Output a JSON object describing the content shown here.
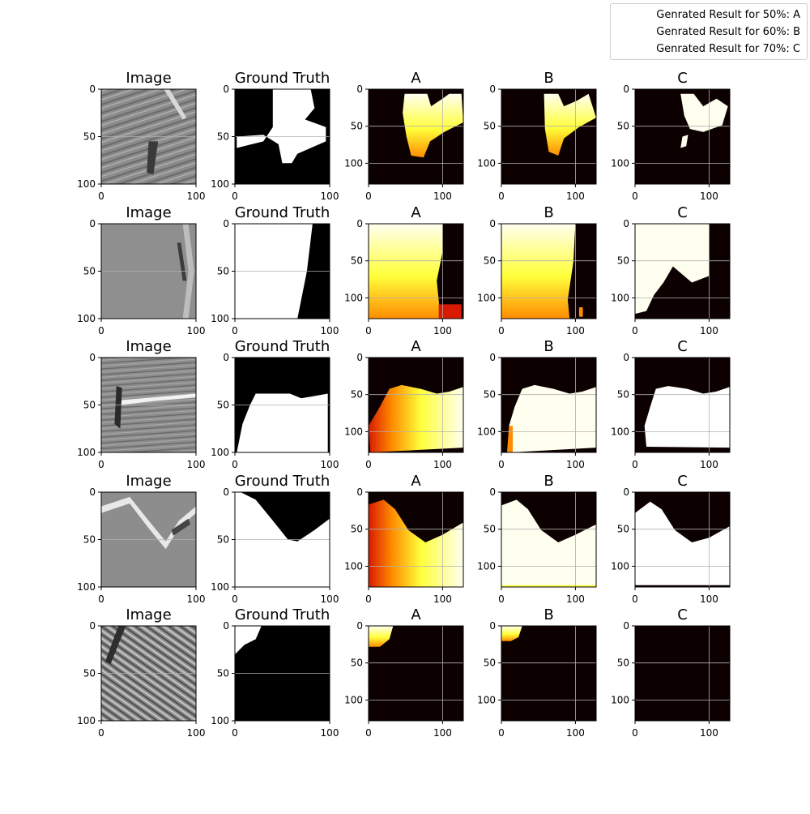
{
  "legend": {
    "entries": [
      "Genrated Result for 50%: A",
      "Genrated Result for 60%: B",
      "Genrated Result for 70%: C"
    ]
  },
  "colors": {
    "hot_black": "#0d0000",
    "hot_red": "#d81b00",
    "hot_orange": "#ff8c00",
    "hot_yellow": "#ffff3a",
    "hot_white": "#fffff0",
    "mask_white": "#ffffff",
    "mask_black": "#000000",
    "seismic_gray": "#8a8a8a",
    "grid": "#b0b0b0"
  },
  "chart_data": [
    {
      "type": "heatmap",
      "description_rows": 5,
      "columns": [
        {
          "title": "Image",
          "xlim": [
            0,
            100
          ],
          "ylim": [
            100,
            0
          ],
          "xticks": [
            "0",
            "100"
          ],
          "yticks": [
            "0",
            "50",
            "100"
          ],
          "colormap": "gray"
        },
        {
          "title": "Ground Truth",
          "xlim": [
            0,
            100
          ],
          "ylim": [
            100,
            0
          ],
          "xticks": [
            "0",
            "100"
          ],
          "yticks": [
            "0",
            "50",
            "100"
          ],
          "colormap": "binary"
        },
        {
          "title": "A",
          "xlim": [
            0,
            128
          ],
          "ylim": [
            128,
            0
          ],
          "xticks": [
            "0",
            "100"
          ],
          "yticks": [
            "0",
            "50",
            "100"
          ],
          "colormap": "hot"
        },
        {
          "title": "B",
          "xlim": [
            0,
            128
          ],
          "ylim": [
            128,
            0
          ],
          "xticks": [
            "0",
            "100"
          ],
          "yticks": [
            "0",
            "50",
            "100"
          ],
          "colormap": "hot"
        },
        {
          "title": "C",
          "xlim": [
            0,
            128
          ],
          "ylim": [
            128,
            0
          ],
          "xticks": [
            "0",
            "100"
          ],
          "yticks": [
            "0",
            "50",
            "100"
          ],
          "colormap": "hot"
        }
      ],
      "grid": true,
      "legend_position": "top-right"
    }
  ]
}
